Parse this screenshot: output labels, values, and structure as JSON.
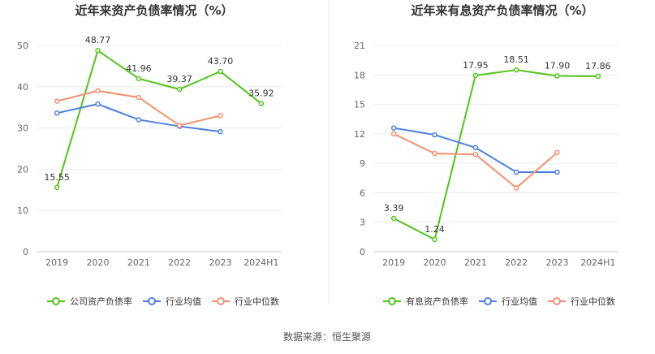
{
  "source_label": "数据来源：恒生聚源",
  "chart_data": [
    {
      "type": "line",
      "title": "近年来资产负债率情况（%）",
      "categories": [
        "2019",
        "2020",
        "2021",
        "2022",
        "2023",
        "2024H1"
      ],
      "y_ticks": [
        "0",
        "10",
        "20",
        "30",
        "40",
        "50"
      ],
      "ylim": [
        0,
        50
      ],
      "grid": true,
      "legend_position": "bottom",
      "series": [
        {
          "name": "公司资产负债率",
          "color": "#52c41a",
          "labels": true,
          "values": [
            15.55,
            48.77,
            41.96,
            39.37,
            43.7,
            35.92
          ],
          "value_labels": [
            "15.55",
            "48.77",
            "41.96",
            "39.37",
            "43.70",
            "35.92"
          ]
        },
        {
          "name": "行业均值",
          "color": "#4e7fe0",
          "labels": false,
          "values": [
            33.6,
            35.8,
            32.0,
            30.4,
            29.1,
            null
          ]
        },
        {
          "name": "行业中位数",
          "color": "#f4906e",
          "labels": false,
          "values": [
            36.5,
            39.0,
            37.4,
            30.6,
            33.0,
            null
          ]
        }
      ]
    },
    {
      "type": "line",
      "title": "近年来有息资产负债率情况（%）",
      "categories": [
        "2019",
        "2020",
        "2021",
        "2022",
        "2023",
        "2024H1"
      ],
      "y_ticks": [
        "0",
        "3",
        "6",
        "9",
        "12",
        "15",
        "18",
        "21"
      ],
      "ylim": [
        0,
        21
      ],
      "grid": true,
      "legend_position": "bottom",
      "series": [
        {
          "name": "有息资产负债率",
          "color": "#52c41a",
          "labels": true,
          "values": [
            3.39,
            1.24,
            17.95,
            18.51,
            17.9,
            17.86
          ],
          "value_labels": [
            "3.39",
            "1.24",
            "17.95",
            "18.51",
            "17.90",
            "17.86"
          ]
        },
        {
          "name": "行业均值",
          "color": "#4e7fe0",
          "labels": false,
          "values": [
            12.6,
            11.9,
            10.6,
            8.1,
            8.1,
            null
          ]
        },
        {
          "name": "行业中位数",
          "color": "#f4906e",
          "labels": false,
          "values": [
            12.0,
            10.0,
            9.9,
            6.5,
            10.1,
            null
          ]
        }
      ]
    }
  ]
}
